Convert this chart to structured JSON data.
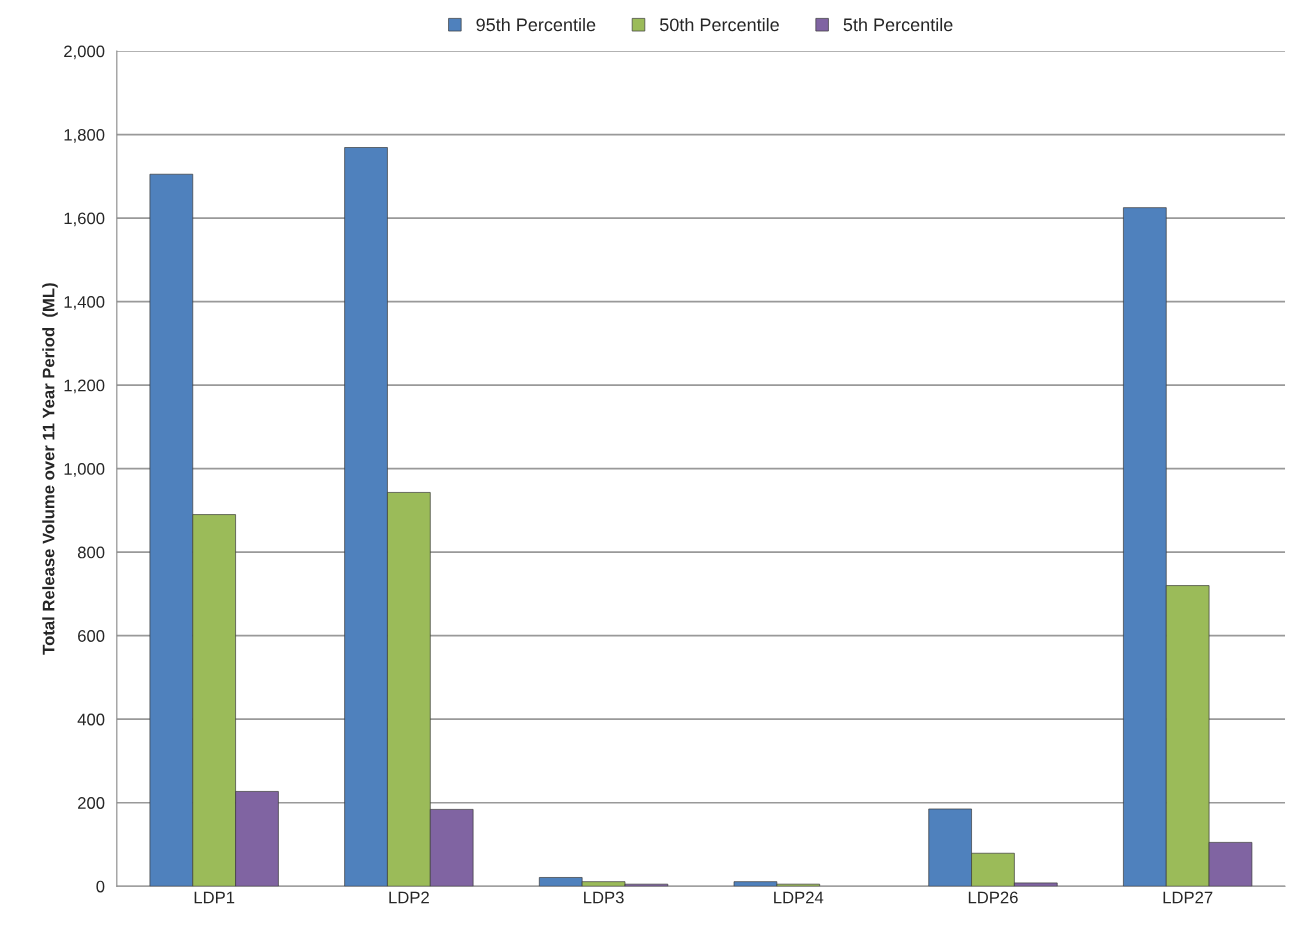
{
  "chart_data": {
    "type": "bar",
    "ylabel": "Total Release Volume over 11 Year Period  (ML)",
    "categories": [
      "LDP1",
      "LDP2",
      "LDP3",
      "LDP24",
      "LDP26",
      "LDP27"
    ],
    "series": [
      {
        "name": "95th Percentile",
        "color": "#4f81bd",
        "values": [
          1705,
          1769,
          21,
          11,
          185,
          1625
        ]
      },
      {
        "name": "50th Percentile",
        "color": "#9bbb59",
        "values": [
          890,
          943,
          11,
          5,
          79,
          720
        ]
      },
      {
        "name": "5th Percentile",
        "color": "#8064a2",
        "values": [
          227,
          184,
          5,
          null,
          8,
          105
        ]
      }
    ],
    "ylim": [
      0,
      2000
    ],
    "yticks": [
      {
        "value": 0,
        "label": "0"
      },
      {
        "value": 200,
        "label": "200"
      },
      {
        "value": 400,
        "label": "400"
      },
      {
        "value": 600,
        "label": "600"
      },
      {
        "value": 800,
        "label": "800"
      },
      {
        "value": 1000,
        "label": "1,000"
      },
      {
        "value": 1200,
        "label": "1,200"
      },
      {
        "value": 1400,
        "label": "1,400"
      },
      {
        "value": 1600,
        "label": "1,600"
      },
      {
        "value": 1800,
        "label": "1,800"
      },
      {
        "value": 2000,
        "label": "2,000"
      }
    ],
    "grid": "y",
    "legend": "top"
  }
}
